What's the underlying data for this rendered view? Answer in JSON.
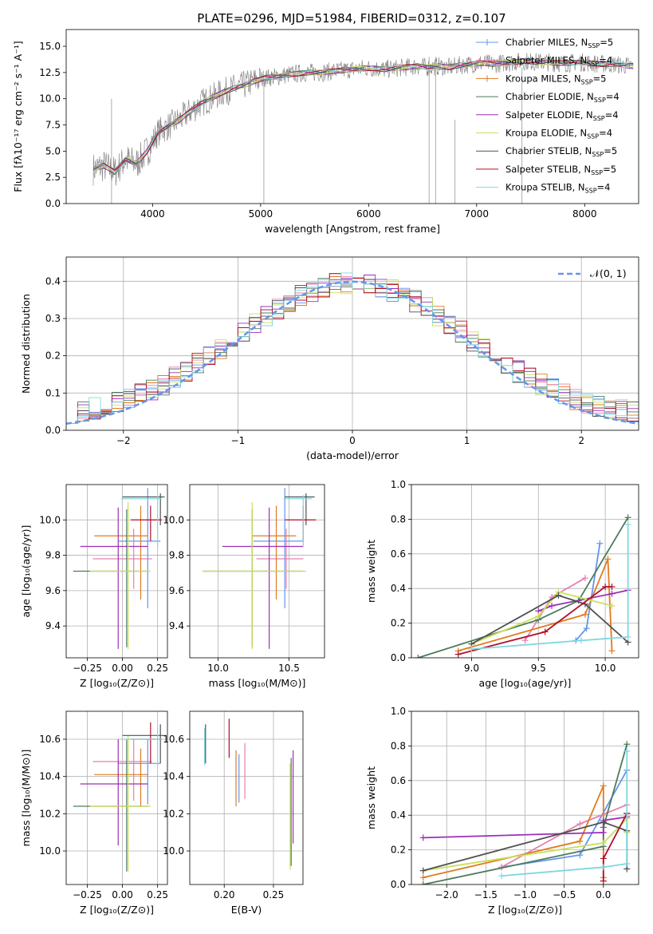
{
  "chart_data": [
    {
      "type": "line",
      "title": "PLATE=0296, MJD=51984, FIBERID=0312, z=0.107",
      "xlabel": "wavelength [Angstrom, rest frame]",
      "ylabel": "Flux [fλ10⁻¹⁷ erg cm⁻² s⁻¹ A⁻¹]",
      "xlim": [
        3200,
        8500
      ],
      "ylim": [
        0,
        16.6
      ],
      "xticks": [
        4000,
        5000,
        6000,
        7000,
        8000
      ],
      "yticks": [
        0.0,
        2.5,
        5.0,
        7.5,
        10.0,
        12.5,
        15.0
      ],
      "observed": {
        "x": [
          3450,
          3550,
          3650,
          3750,
          3850,
          3950,
          4050,
          4150,
          4250,
          4350,
          4450,
          4550,
          4650,
          4750,
          4850,
          4950,
          5050,
          5150,
          5250,
          5350,
          5450,
          5550,
          5650,
          5750,
          5850,
          5950,
          6050,
          6150,
          6250,
          6350,
          6450,
          6550,
          6650,
          6750,
          6850,
          6950,
          7050,
          7150,
          7250,
          7350,
          7450,
          7550,
          7650,
          7750,
          7850,
          7950,
          8050,
          8150,
          8250,
          8350,
          8450
        ],
        "y": [
          3.3,
          3.6,
          3.0,
          4.2,
          3.8,
          5.0,
          6.8,
          7.4,
          8.0,
          8.8,
          9.6,
          10.1,
          10.6,
          11.0,
          11.3,
          11.7,
          12.0,
          12.1,
          12.3,
          12.4,
          12.5,
          12.5,
          12.6,
          12.7,
          12.8,
          12.9,
          12.9,
          12.8,
          12.9,
          13.0,
          13.1,
          13.0,
          13.1,
          13.0,
          13.2,
          13.3,
          13.4,
          13.3,
          13.4,
          13.5,
          13.6,
          13.5,
          13.5,
          13.4,
          13.4,
          13.5,
          13.4,
          13.3,
          13.3,
          13.2,
          13.1
        ]
      },
      "series": [
        {
          "name": "Chabrier MILES, N$_{SSP}$=5",
          "label_main": "Chabrier MILES, N",
          "label_sub": "SSP",
          "label_tail": "=5",
          "color": "#6495ed"
        },
        {
          "name": "Salpeter MILES, N$_{SSP}$=4",
          "label_main": "Salpeter MILES, N",
          "label_sub": "SSP",
          "label_tail": "=4",
          "color": "#e87fb0"
        },
        {
          "name": "Kroupa MILES, N$_{SSP}$=5",
          "label_main": "Kroupa MILES, N",
          "label_sub": "SSP",
          "label_tail": "=5",
          "color": "#e07b20"
        },
        {
          "name": "Chabrier ELODIE, N$_{SSP}$=4",
          "label_main": "Chabrier ELODIE, N",
          "label_sub": "SSP",
          "label_tail": "=4",
          "color": "#4e7a5c"
        },
        {
          "name": "Salpeter ELODIE, N$_{SSP}$=4",
          "label_main": "Salpeter ELODIE, N",
          "label_sub": "SSP",
          "label_tail": "=4",
          "color": "#9b30b5"
        },
        {
          "name": "Kroupa ELODIE, N$_{SSP}$=4",
          "label_main": "Kroupa ELODIE, N",
          "label_sub": "SSP",
          "label_tail": "=4",
          "color": "#c8e05a"
        },
        {
          "name": "Chabrier STELIB, N$_{SSP}$=5",
          "label_main": "Chabrier STELIB, N",
          "label_sub": "SSP",
          "label_tail": "=5",
          "color": "#505050"
        },
        {
          "name": "Salpeter STELIB, N$_{SSP}$=5",
          "label_main": "Salpeter STELIB, N",
          "label_sub": "SSP",
          "label_tail": "=5",
          "color": "#b0102a"
        },
        {
          "name": "Kroupa STELIB, N$_{SSP}$=4",
          "label_main": "Kroupa STELIB, N",
          "label_sub": "SSP",
          "label_tail": "=4",
          "color": "#7fd8e0"
        }
      ],
      "legend": "top-right"
    },
    {
      "type": "line",
      "xlabel": "(data-model)/error",
      "ylabel": "Normed distribution",
      "xlim": [
        -2.5,
        2.5
      ],
      "ylim": [
        0,
        0.465
      ],
      "xticks": [
        -2,
        -1,
        0,
        1,
        2
      ],
      "yticks": [
        0.0,
        0.1,
        0.2,
        0.3,
        0.4
      ],
      "grid": true,
      "legend": "top-right",
      "gaussian_label": "𝒩(0, 1)",
      "hist_bin_width": 0.1,
      "hist_x_start": -2.5
    },
    {
      "type": "scatter",
      "xlabel": "Z [log₁₀(Z/Z⊙)]",
      "ylabel": "age  [log₁₀(age/yr)]",
      "xlim": [
        -0.4,
        0.32
      ],
      "ylim": [
        9.22,
        10.2
      ],
      "xticks": [
        -0.25,
        0.0,
        0.25
      ],
      "yticks": [
        9.4,
        9.6,
        9.8,
        10.0
      ],
      "grid": true
    },
    {
      "type": "scatter",
      "xlabel": "mass [log₁₀(M/M⊙)]",
      "xlim": [
        9.8,
        10.75
      ],
      "ylim": [
        9.22,
        10.2
      ],
      "xticks": [
        10.0,
        10.5
      ],
      "yticks": [
        9.4,
        9.6,
        9.8,
        10.0
      ],
      "grid": true
    },
    {
      "type": "line",
      "xlabel": "age  [log₁₀(age/yr)]",
      "ylabel": "mass weight",
      "xlim": [
        8.55,
        10.25
      ],
      "ylim": [
        0,
        1.0
      ],
      "xticks": [
        9.0,
        9.5,
        10.0
      ],
      "yticks": [
        0.0,
        0.2,
        0.4,
        0.6,
        0.8,
        1.0
      ],
      "grid": true
    },
    {
      "type": "scatter",
      "xlabel": "Z [log₁₀(Z/Z⊙)]",
      "ylabel": "mass [log₁₀(M/M⊙)]",
      "xlim": [
        -0.4,
        0.32
      ],
      "ylim": [
        9.82,
        10.75
      ],
      "xticks": [
        -0.25,
        0.0,
        0.25
      ],
      "yticks": [
        10.0,
        10.2,
        10.4,
        10.6
      ],
      "grid": true
    },
    {
      "type": "scatter",
      "xlabel": "E(B-V)",
      "xlim": [
        0.165,
        0.28
      ],
      "ylim": [
        9.82,
        10.75
      ],
      "xticks": [
        0.2,
        0.25
      ],
      "yticks": [
        10.0,
        10.2,
        10.4,
        10.6
      ],
      "grid": true
    },
    {
      "type": "line",
      "xlabel": "Z [log₁₀(Z/Z⊙)]",
      "ylabel": "mass weight",
      "xlim": [
        -2.45,
        0.45
      ],
      "ylim": [
        0,
        1.0
      ],
      "xticks": [
        -2.0,
        -1.5,
        -1.0,
        -0.5,
        0.0
      ],
      "yticks": [
        0.0,
        0.2,
        0.4,
        0.6,
        0.8,
        1.0
      ],
      "grid": true
    }
  ],
  "fits": [
    {
      "age": 9.88,
      "age_err": [
        9.5,
        10.18
      ],
      "Z": 0.18,
      "Z_err": [
        -0.03,
        0.27
      ],
      "mass": 10.47,
      "mass_err": [
        10.25,
        10.6
      ],
      "ebv": 0.215,
      "ebv_err": [
        10.26,
        10.52
      ]
    },
    {
      "age": 9.78,
      "age_err": [
        9.61,
        9.95
      ],
      "Z": 0.08,
      "Z_err": [
        -0.21,
        0.21
      ],
      "mass": 10.48,
      "mass_err": [
        10.27,
        10.6
      ],
      "ebv": 0.221,
      "ebv_err": [
        10.28,
        10.58
      ]
    },
    {
      "age": 9.91,
      "age_err": [
        9.55,
        10.08
      ],
      "Z": 0.13,
      "Z_err": [
        -0.2,
        0.18
      ],
      "mass": 10.41,
      "mass_err": [
        10.24,
        10.55
      ],
      "ebv": 0.212,
      "ebv_err": [
        10.24,
        10.54
      ]
    },
    {
      "age": 9.71,
      "age_err": [
        9.28,
        10.06
      ],
      "Z": 0.03,
      "Z_err": [
        -0.35,
        0.18
      ],
      "mass": 10.24,
      "mass_err": [
        9.89,
        10.6
      ],
      "ebv": 0.268,
      "ebv_err": [
        9.92,
        10.5
      ]
    },
    {
      "age": 9.85,
      "age_err": [
        9.27,
        10.07
      ],
      "Z": -0.03,
      "Z_err": [
        -0.3,
        0.18
      ],
      "mass": 10.36,
      "mass_err": [
        10.03,
        10.6
      ],
      "ebv": 0.27,
      "ebv_err": [
        10.04,
        10.54
      ]
    },
    {
      "age": 9.71,
      "age_err": [
        9.27,
        10.1
      ],
      "Z": 0.04,
      "Z_err": [
        -0.23,
        0.2
      ],
      "mass": 10.24,
      "mass_err": [
        9.89,
        10.62
      ],
      "ebv": 0.267,
      "ebv_err": [
        9.9,
        10.47
      ]
    },
    {
      "age": 10.13,
      "age_err": [
        9.97,
        10.15
      ],
      "Z": 0.27,
      "Z_err": [
        0.0,
        0.3
      ],
      "mass": 10.62,
      "mass_err": [
        10.47,
        10.68
      ],
      "ebv": 0.181,
      "ebv_err": [
        10.47,
        10.68
      ]
    },
    {
      "age": 10.0,
      "age_err": [
        9.88,
        10.08
      ],
      "Z": 0.2,
      "Z_err": [
        0.06,
        0.28
      ],
      "mass": 10.6,
      "mass_err": [
        10.47,
        10.69
      ],
      "ebv": 0.205,
      "ebv_err": [
        10.5,
        10.71
      ]
    },
    {
      "age": 10.12,
      "age_err": [
        9.85,
        10.14
      ],
      "Z": 0.25,
      "Z_err": [
        -0.01,
        0.28
      ],
      "mass": 10.6,
      "mass_err": [
        10.46,
        10.66
      ],
      "ebv": 0.18,
      "ebv_err": [
        10.46,
        10.66
      ]
    }
  ],
  "weights": [
    {
      "ages": [
        9.78,
        9.86,
        9.96
      ],
      "w": [
        0.1,
        0.17,
        0.66
      ],
      "Zs": [
        -1.3,
        -0.3,
        0.3
      ]
    },
    {
      "ages": [
        9.4,
        9.6,
        9.85
      ],
      "w": [
        0.1,
        0.35,
        0.46
      ],
      "Zs": [
        -1.3,
        -0.3,
        0.3
      ]
    },
    {
      "ages": [
        8.9,
        9.85,
        10.02,
        10.05
      ],
      "w": [
        0.04,
        0.25,
        0.57,
        0.04
      ],
      "Zs": [
        -2.3,
        -0.3,
        0.0,
        0.0
      ]
    },
    {
      "ages": [
        8.6,
        9.5,
        9.8,
        10.17
      ],
      "w": [
        0.0,
        0.22,
        0.33,
        0.81
      ],
      "Zs": [
        -2.3,
        0.0,
        0.0,
        0.3
      ]
    },
    {
      "ages": [
        9.5,
        9.6,
        10.05,
        10.17
      ],
      "w": [
        0.27,
        0.3,
        0.37,
        0.39
      ],
      "Zs": [
        -2.3,
        0.0,
        0.0,
        0.3
      ]
    },
    {
      "ages": [
        9.0,
        9.5,
        9.65,
        10.05
      ],
      "w": [
        0.08,
        0.24,
        0.38,
        0.3
      ],
      "Zs": [
        -2.3,
        0.0,
        0.3,
        0.3
      ]
    },
    {
      "ages": [
        9.0,
        9.65,
        9.85,
        10.17
      ],
      "w": [
        0.08,
        0.36,
        0.31,
        0.09
      ],
      "Zs": [
        -2.3,
        0.0,
        0.3,
        0.3
      ]
    },
    {
      "ages": [
        8.9,
        9.55,
        10.0,
        10.05
      ],
      "w": [
        0.02,
        0.15,
        0.41,
        0.41
      ],
      "Zs": [
        0.0,
        0.0,
        0.3,
        0.3
      ]
    },
    {
      "ages": [
        9.0,
        9.82,
        10.17,
        10.17
      ],
      "w": [
        0.05,
        0.1,
        0.12,
        0.77
      ],
      "Zs": [
        -1.3,
        0.0,
        0.3,
        0.3
      ]
    }
  ]
}
